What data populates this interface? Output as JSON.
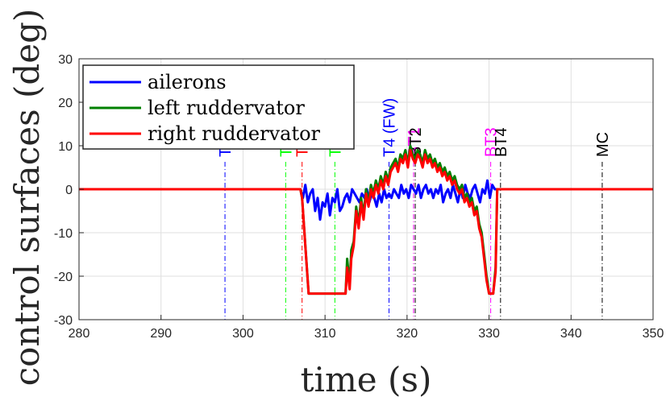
{
  "chart_data": {
    "type": "line",
    "title": "",
    "xlabel": "time (s)",
    "ylabel": "control surfaces (deg)",
    "xlim": [
      280,
      350
    ],
    "ylim": [
      -30,
      30
    ],
    "xticks": [
      280,
      290,
      300,
      310,
      320,
      330,
      340,
      350
    ],
    "yticks": [
      -30,
      -20,
      -10,
      0,
      10,
      20,
      30
    ],
    "x_tick_labels": [
      "280",
      "290",
      "300",
      "310",
      "320",
      "330",
      "340",
      "350"
    ],
    "y_tick_labels": [
      "-30",
      "-20",
      "-10",
      "0",
      "10",
      "20",
      "30"
    ],
    "grid": true,
    "legend_position": "top-left",
    "series": [
      {
        "name": "ailerons",
        "color": "#0000ff",
        "x": [
          280,
          307.0,
          307.3,
          307.6,
          307.9,
          308.2,
          308.5,
          308.8,
          309.1,
          309.4,
          309.7,
          310.0,
          310.3,
          310.6,
          310.9,
          311.2,
          311.5,
          311.8,
          312.1,
          312.4,
          312.7,
          313.0,
          313.3,
          313.6,
          313.9,
          314.2,
          314.5,
          314.8,
          315.1,
          315.4,
          315.7,
          316.0,
          316.3,
          316.6,
          316.9,
          317.2,
          317.5,
          317.8,
          318.1,
          318.4,
          318.7,
          319.0,
          319.3,
          319.6,
          319.9,
          320.2,
          320.5,
          320.8,
          321.1,
          321.4,
          321.7,
          322.0,
          322.3,
          322.6,
          322.9,
          323.2,
          323.5,
          323.8,
          324.1,
          324.4,
          324.7,
          325.0,
          325.3,
          325.6,
          325.9,
          326.2,
          326.5,
          326.8,
          327.1,
          327.4,
          327.7,
          328.0,
          328.3,
          328.6,
          328.9,
          329.2,
          329.5,
          329.8,
          330.1,
          330.4,
          330.7,
          331.0,
          350
        ],
        "values": [
          0,
          0,
          -2,
          1,
          -3,
          -1,
          0,
          -5,
          -2,
          -7,
          -3,
          -4,
          -1,
          -6,
          -2,
          -3,
          0,
          -5,
          -4,
          -2,
          -1,
          -3,
          0,
          -1,
          -2,
          -3,
          -1,
          -2,
          0,
          -3,
          -1,
          -2,
          -4,
          -1,
          -3,
          0,
          -2,
          -1,
          -2,
          0,
          -1,
          -2,
          1,
          -1,
          0,
          -2,
          1,
          0,
          -1,
          1,
          -2,
          0,
          1,
          -1,
          0,
          -2,
          0,
          -1,
          1,
          -3,
          -1,
          0,
          -2,
          1,
          -1,
          -3,
          0,
          -2,
          1,
          -1,
          -2,
          0,
          1,
          -1,
          -3,
          0,
          -1,
          2,
          -2,
          1,
          0,
          0,
          0
        ]
      },
      {
        "name": "left ruddervator",
        "color": "#008000",
        "x": [
          280,
          307.0,
          307.2,
          307.6,
          308.0,
          312.5,
          312.7,
          313.0,
          313.2,
          313.5,
          313.8,
          314.1,
          314.4,
          314.7,
          315.0,
          315.3,
          315.6,
          315.9,
          316.2,
          316.5,
          316.8,
          317.1,
          317.4,
          317.7,
          318.0,
          318.3,
          318.6,
          318.9,
          319.2,
          319.5,
          319.8,
          320.1,
          320.4,
          320.7,
          321.0,
          321.3,
          321.6,
          321.9,
          322.2,
          322.5,
          322.8,
          323.1,
          323.4,
          323.7,
          324.0,
          324.3,
          324.6,
          324.9,
          325.2,
          325.5,
          325.8,
          326.1,
          326.4,
          326.7,
          327.0,
          327.3,
          327.6,
          327.9,
          328.2,
          328.5,
          328.8,
          329.1,
          329.4,
          329.7,
          330.0,
          330.3,
          330.5,
          330.8,
          331.0,
          350
        ],
        "values": [
          0,
          0,
          -2,
          -13,
          -24,
          -24,
          -16,
          -22,
          -14,
          -12,
          -4,
          -8,
          -2,
          -6,
          0,
          -3,
          1,
          -1,
          2,
          0,
          3,
          1,
          4,
          2,
          5,
          6,
          7,
          5,
          8,
          7,
          9,
          6,
          10,
          8,
          7,
          9,
          8,
          6,
          9,
          7,
          8,
          6,
          7,
          5,
          6,
          4,
          5,
          3,
          4,
          2,
          3,
          1,
          0,
          1,
          -2,
          -1,
          -3,
          -2,
          -5,
          -4,
          -8,
          -10,
          -15,
          -20,
          -24,
          -24,
          -24,
          -18,
          0,
          0
        ]
      },
      {
        "name": "right ruddervator",
        "color": "#ff0000",
        "x": [
          280,
          307.0,
          307.2,
          307.6,
          308.0,
          312.5,
          312.7,
          313.0,
          313.2,
          313.5,
          313.8,
          314.1,
          314.4,
          314.7,
          315.0,
          315.3,
          315.6,
          315.9,
          316.2,
          316.5,
          316.8,
          317.1,
          317.4,
          317.7,
          318.0,
          318.3,
          318.6,
          318.9,
          319.2,
          319.5,
          319.8,
          320.1,
          320.4,
          320.7,
          321.0,
          321.3,
          321.6,
          321.9,
          322.2,
          322.5,
          322.8,
          323.1,
          323.4,
          323.7,
          324.0,
          324.3,
          324.6,
          324.9,
          325.2,
          325.5,
          325.8,
          326.1,
          326.4,
          326.7,
          327.0,
          327.3,
          327.6,
          327.9,
          328.2,
          328.5,
          328.8,
          329.1,
          329.4,
          329.7,
          330.0,
          330.3,
          330.5,
          330.8,
          331.0,
          350
        ],
        "values": [
          0,
          0,
          -2,
          -13,
          -24,
          -24,
          -18,
          -23,
          -16,
          -13,
          -5,
          -9,
          -3,
          -7,
          -1,
          -4,
          0,
          -2,
          1,
          -1,
          2,
          0,
          3,
          1,
          4,
          5,
          6,
          4,
          7,
          6,
          8,
          5,
          9,
          7,
          6,
          8,
          7,
          5,
          8,
          6,
          7,
          5,
          6,
          4,
          5,
          3,
          4,
          2,
          3,
          1,
          2,
          0,
          -1,
          0,
          -3,
          -2,
          -4,
          -3,
          -6,
          -5,
          -9,
          -11,
          -16,
          -21,
          -24,
          -24,
          -24,
          -19,
          0,
          0
        ]
      }
    ],
    "event_markers": [
      {
        "label": "T0",
        "x": 297.8,
        "color": "#0000ff"
      },
      {
        "label": "T1",
        "x": 305.2,
        "color": "#00ff00"
      },
      {
        "label": "T2",
        "x": 307.2,
        "color": "#ff0000"
      },
      {
        "label": "T3",
        "x": 311.2,
        "color": "#00ff00"
      },
      {
        "label": "T4 (FW)",
        "x": 317.8,
        "color": "#0000ff"
      },
      {
        "label": "BT1",
        "x": 320.8,
        "color": "#ff00ff"
      },
      {
        "label": "BT2",
        "x": 321.0,
        "color": "#000000"
      },
      {
        "label": "BT3",
        "x": 330.2,
        "color": "#ff00ff"
      },
      {
        "label": "BT4",
        "x": 331.4,
        "color": "#000000"
      },
      {
        "label": "MC",
        "x": 343.8,
        "color": "#000000"
      }
    ]
  }
}
